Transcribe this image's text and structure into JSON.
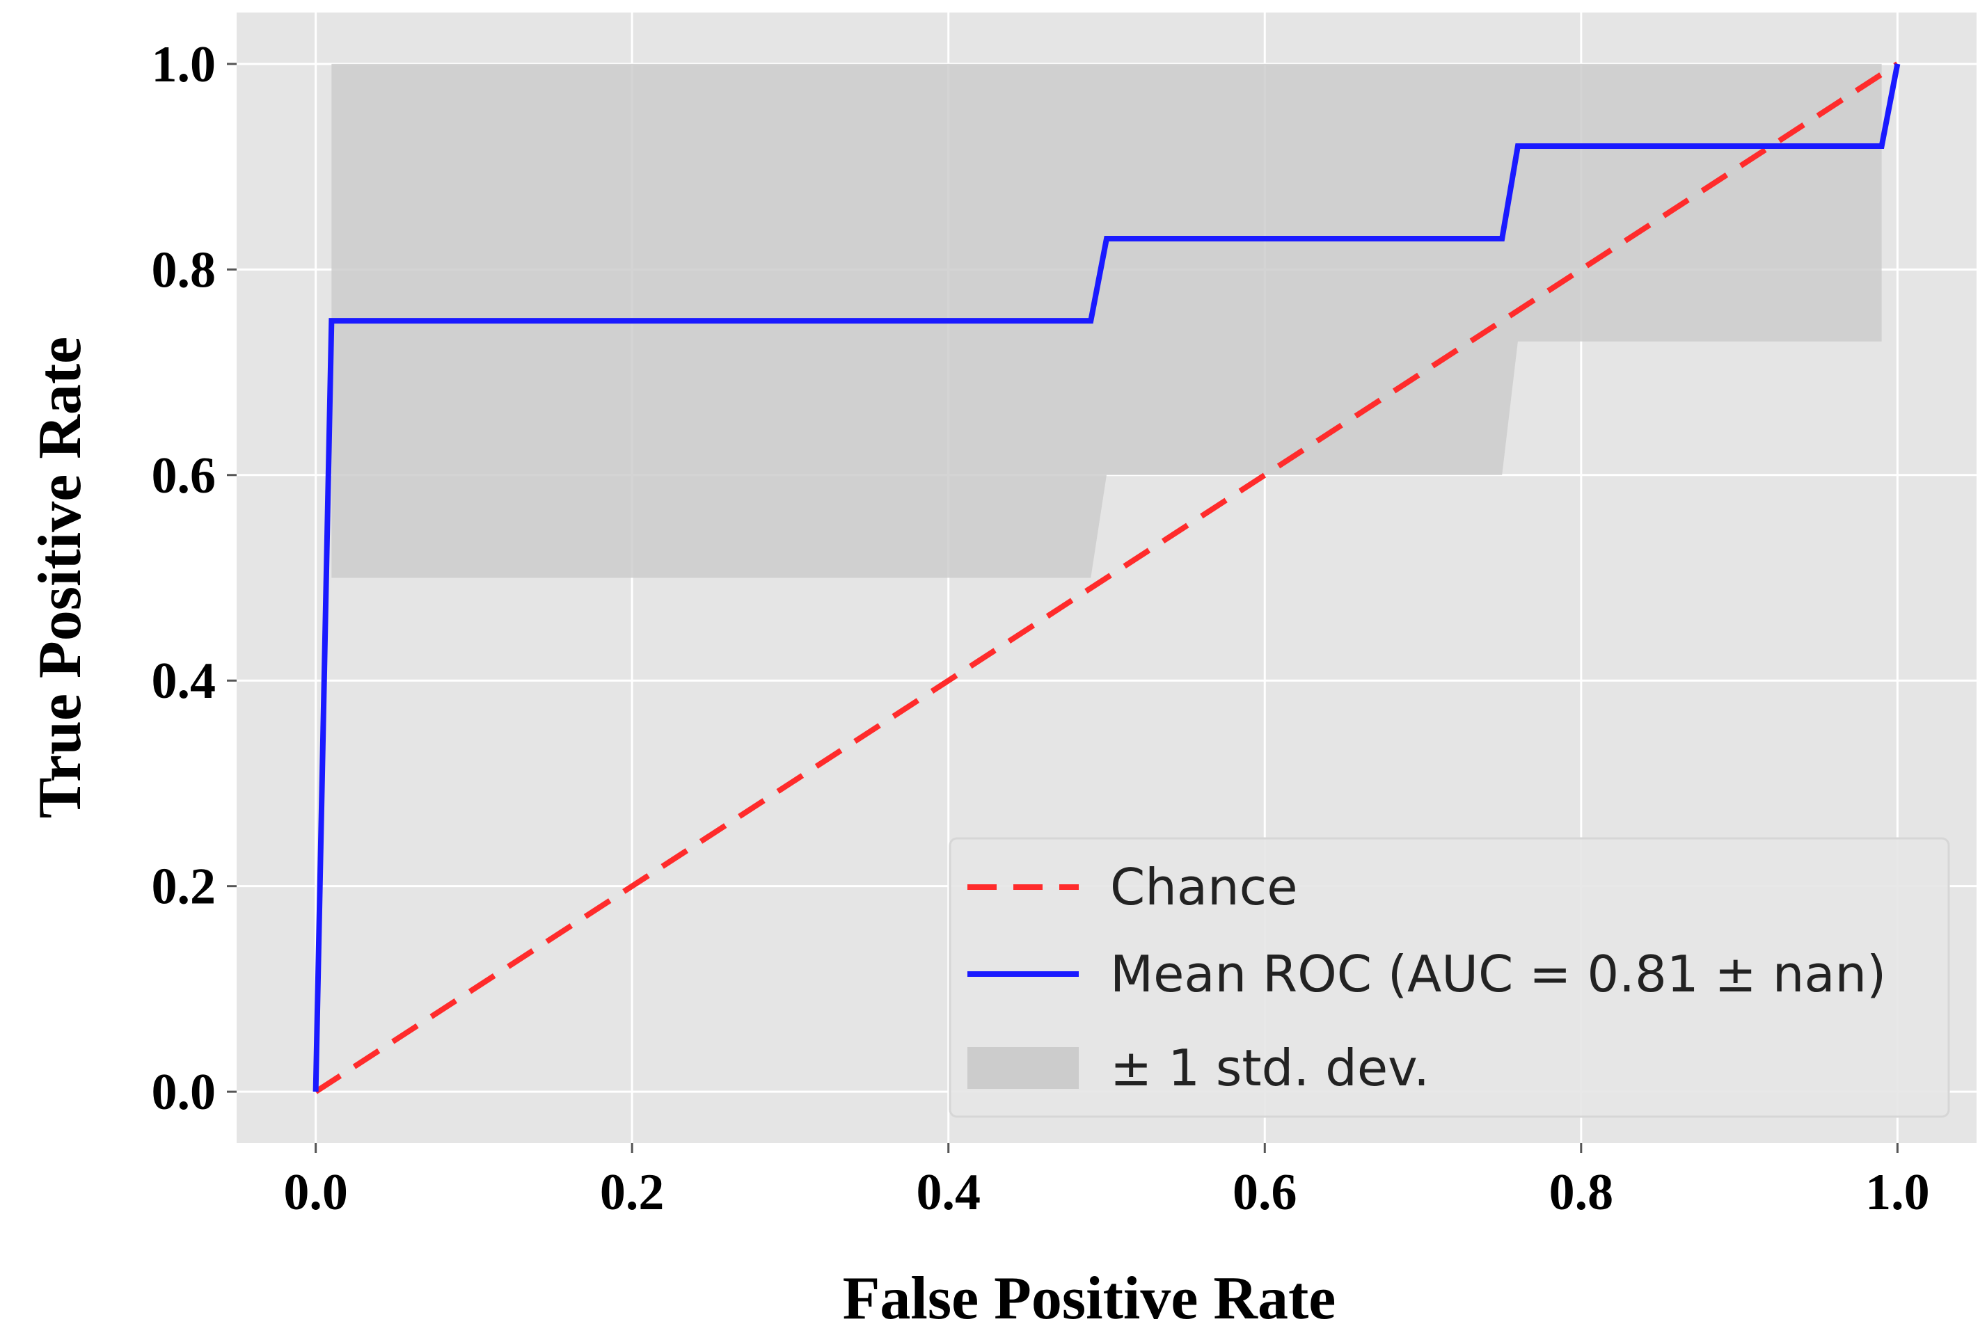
{
  "chart_data": {
    "type": "line",
    "title": "",
    "xlabel": "False Positive Rate",
    "ylabel": "True Positive Rate",
    "xlim": [
      -0.05,
      1.05
    ],
    "ylim": [
      -0.05,
      1.05
    ],
    "xticks": [
      0.0,
      0.2,
      0.4,
      0.6,
      0.8,
      1.0
    ],
    "yticks": [
      0.0,
      0.2,
      0.4,
      0.6,
      0.8,
      1.0
    ],
    "xtick_labels": [
      "0.0",
      "0.2",
      "0.4",
      "0.6",
      "0.8",
      "1.0"
    ],
    "ytick_labels": [
      "0.0",
      "0.2",
      "0.4",
      "0.6",
      "0.8",
      "1.0"
    ],
    "grid": true,
    "legend_position": "lower-right",
    "series": [
      {
        "name": "Chance",
        "style": "dashed",
        "color": "#ff2b2b",
        "x": [
          0.0,
          1.0
        ],
        "y": [
          0.0,
          1.0
        ]
      },
      {
        "name": "Mean ROC (AUC = 0.81 ± nan)",
        "style": "solid",
        "color": "#1a1aff",
        "x": [
          0.0,
          0.01,
          0.49,
          0.5,
          0.75,
          0.76,
          0.99,
          1.0
        ],
        "y": [
          0.0,
          0.75,
          0.75,
          0.83,
          0.83,
          0.92,
          0.92,
          1.0
        ]
      }
    ],
    "band": {
      "name": "± 1 std. dev.",
      "color": "#cccccc",
      "x": [
        0.01,
        0.49,
        0.5,
        0.75,
        0.76,
        0.99
      ],
      "upper": [
        1.0,
        1.0,
        1.0,
        1.0,
        1.0,
        1.0
      ],
      "lower": [
        0.5,
        0.5,
        0.6,
        0.6,
        0.73,
        0.73
      ]
    }
  },
  "colors": {
    "plot_background": "#e5e5e5",
    "grid": "#ffffff",
    "band": "#cccccc",
    "chance": "#ff2b2b",
    "roc": "#1a1aff"
  }
}
